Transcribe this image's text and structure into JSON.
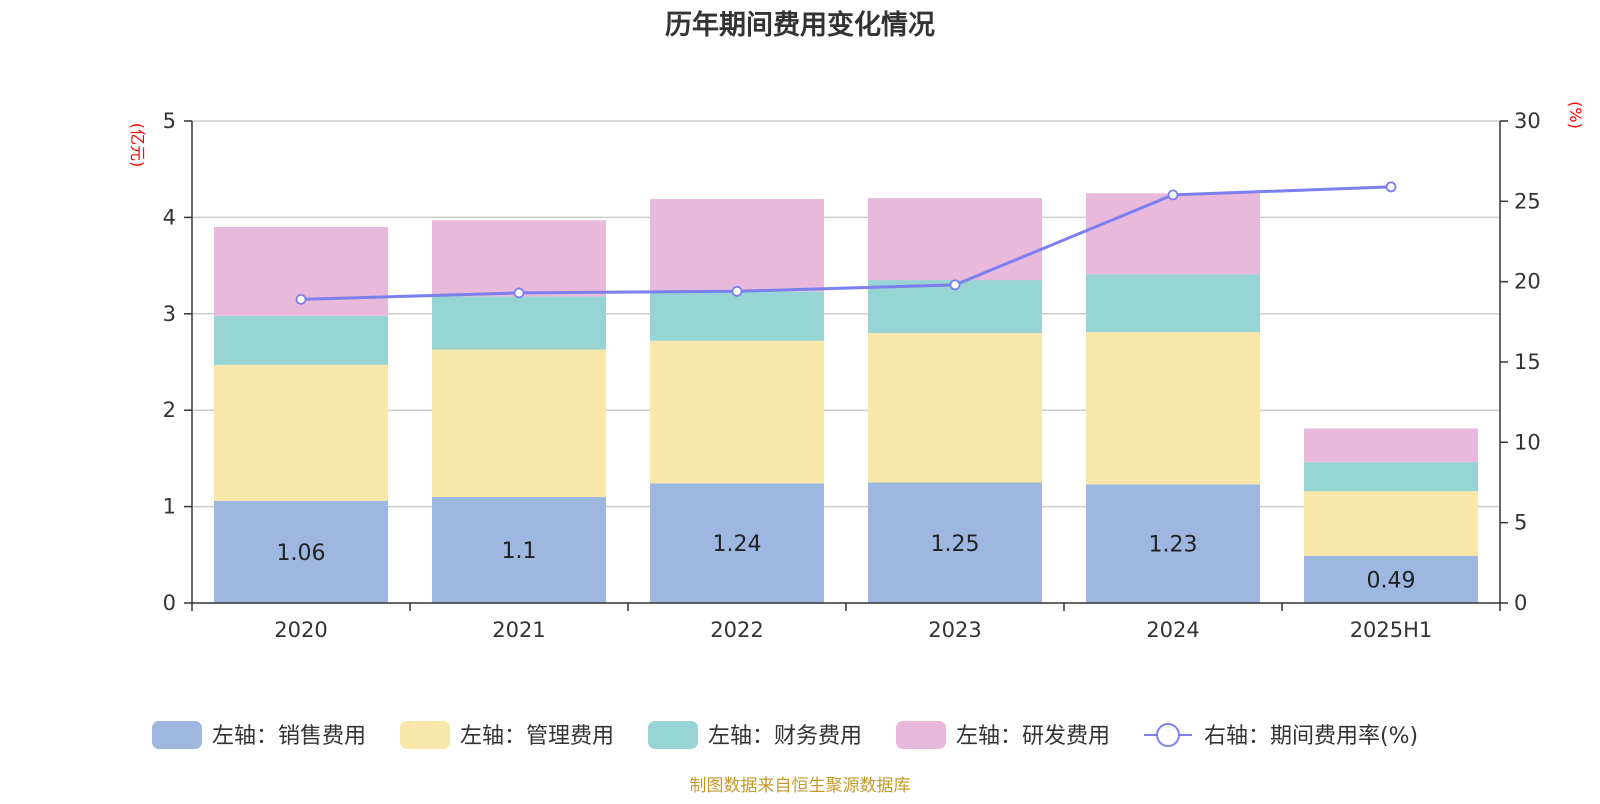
{
  "chart_data": {
    "type": "bar",
    "stacked": true,
    "title": "历年期间费用变化情况",
    "left_axis_unit": "(亿元)",
    "right_axis_unit": "(%)",
    "categories": [
      "2020",
      "2021",
      "2022",
      "2023",
      "2024",
      "2025H1"
    ],
    "left_axis": {
      "min": 0,
      "max": 5,
      "ticks": [
        "0",
        "1",
        "2",
        "3",
        "4",
        "5"
      ]
    },
    "right_axis": {
      "min": 0,
      "max": 30,
      "ticks": [
        "0",
        "5",
        "10",
        "15",
        "20",
        "25",
        "30"
      ]
    },
    "grid": true,
    "legend_position": "bottom",
    "series": [
      {
        "name": "左轴：销售费用",
        "axis": "left",
        "color": "#9db7e0",
        "values": [
          1.06,
          1.1,
          1.24,
          1.25,
          1.23,
          0.49
        ],
        "labels": [
          "1.06",
          "1.1",
          "1.24",
          "1.25",
          "1.23",
          "0.49"
        ]
      },
      {
        "name": "左轴：管理费用",
        "axis": "left",
        "color": "#f8e7a8",
        "values": [
          1.41,
          1.53,
          1.48,
          1.55,
          1.58,
          0.67
        ]
      },
      {
        "name": "左轴：财务费用",
        "axis": "left",
        "color": "#97d4d4",
        "values": [
          0.51,
          0.55,
          0.51,
          0.55,
          0.6,
          0.3
        ]
      },
      {
        "name": "左轴：研发费用",
        "axis": "left",
        "color": "#e8b9da",
        "values": [
          0.92,
          0.79,
          0.96,
          0.85,
          0.84,
          0.35
        ]
      },
      {
        "name": "右轴：期间费用率(%)",
        "axis": "right",
        "type": "line",
        "color": "#7b7ff0",
        "values": [
          18.9,
          19.3,
          19.4,
          19.8,
          25.4,
          25.9
        ]
      }
    ],
    "source": "制图数据来自恒生聚源数据库"
  }
}
